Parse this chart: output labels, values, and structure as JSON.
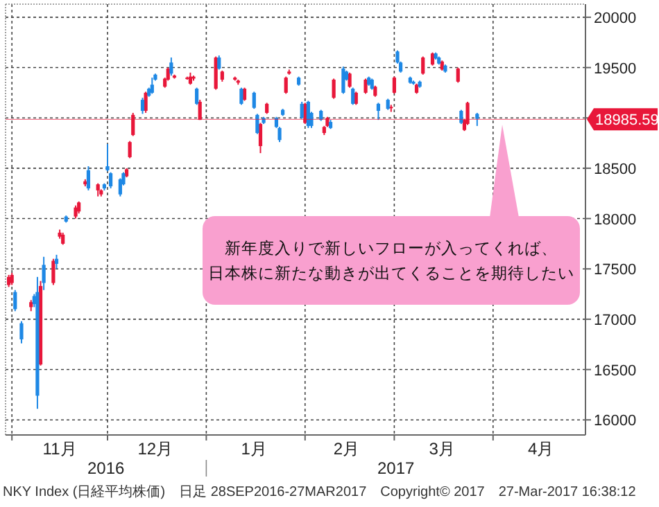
{
  "chart_data": {
    "type": "candlestick",
    "xlim": [
      "2016-10-30",
      "2017-04-30"
    ],
    "xticks": [
      {
        "value": "2016-11-01",
        "label": null
      },
      {
        "value": "2016-11-16",
        "label": "11月"
      },
      {
        "value": "2016-12-01",
        "label": null
      },
      {
        "value": "2016-12-16",
        "label": "12月"
      },
      {
        "value": "2017-01-01",
        "label": null
      },
      {
        "value": "2017-01-16",
        "label": "1月"
      },
      {
        "value": "2017-02-01",
        "label": null
      },
      {
        "value": "2017-02-14",
        "label": "2月"
      },
      {
        "value": "2017-03-01",
        "label": null
      },
      {
        "value": "2017-03-16",
        "label": "3月"
      },
      {
        "value": "2017-04-01",
        "label": null
      },
      {
        "value": "2017-04-16",
        "label": "4月"
      }
    ],
    "ylim": [
      15850,
      20130
    ],
    "yticks": [
      16000,
      16500,
      17000,
      17500,
      18000,
      18500,
      {
        "value": 19000,
        "label": null
      },
      19500,
      20000
    ],
    "grid": true,
    "series": [
      {
        "color": "#e8173a",
        "x": [
          "2016-10-31",
          "2016-11-01",
          "2016-11-07",
          "2016-11-10",
          "2016-11-14",
          "2016-11-16",
          "2016-11-17",
          "2016-11-21",
          "2016-11-22",
          "2016-11-24",
          "2016-11-28",
          "2016-11-29",
          "2016-12-07",
          "2016-12-08",
          "2016-12-09",
          "2016-12-13",
          "2016-12-19",
          "2016-12-20",
          "2016-12-22",
          "2016-12-26",
          "2016-12-27",
          "2016-12-28",
          "2016-12-30",
          "2017-01-04",
          "2017-01-06",
          "2017-01-10",
          "2017-01-11",
          "2017-01-13",
          "2017-01-18",
          "2017-01-20",
          "2017-01-26",
          "2017-01-27",
          "2017-02-01",
          "2017-02-07",
          "2017-02-08",
          "2017-02-10",
          "2017-02-15",
          "2017-02-17",
          "2017-02-20",
          "2017-02-23",
          "2017-02-28",
          "2017-03-01",
          "2017-03-08",
          "2017-03-10",
          "2017-03-13",
          "2017-03-16",
          "2017-03-21",
          "2017-03-23",
          "2017-03-24"
        ],
        "ohlc": [
          [
            17340,
            17440,
            17320,
            17420
          ],
          [
            17360,
            17460,
            17340,
            17440
          ],
          [
            17120,
            17190,
            17080,
            17170
          ],
          [
            16550,
            17380,
            16540,
            17330
          ],
          [
            17360,
            17600,
            17340,
            17580
          ],
          [
            17820,
            17890,
            17800,
            17860
          ],
          [
            17750,
            17860,
            17740,
            17840
          ],
          [
            18020,
            18130,
            18000,
            18110
          ],
          [
            18070,
            18170,
            18050,
            18160
          ],
          [
            18340,
            18390,
            18320,
            18370
          ],
          [
            18280,
            18350,
            18220,
            18340
          ],
          [
            18240,
            18290,
            18220,
            18280
          ],
          [
            18420,
            18500,
            18410,
            18490
          ],
          [
            18610,
            18770,
            18600,
            18760
          ],
          [
            18830,
            19050,
            18820,
            19030
          ],
          [
            19070,
            19260,
            19050,
            19250
          ],
          [
            19310,
            19400,
            19300,
            19390
          ],
          [
            19380,
            19500,
            19370,
            19490
          ],
          [
            19400,
            19430,
            19390,
            19420
          ],
          [
            19390,
            19410,
            19380,
            19400
          ],
          [
            19340,
            19450,
            19330,
            19410
          ],
          [
            19390,
            19420,
            19370,
            19410
          ],
          [
            18980,
            19180,
            18980,
            19160
          ],
          [
            19290,
            19610,
            19280,
            19600
          ],
          [
            19380,
            19470,
            19360,
            19460
          ],
          [
            19380,
            19410,
            19370,
            19400
          ],
          [
            19350,
            19380,
            19330,
            19370
          ],
          [
            19180,
            19300,
            19170,
            19290
          ],
          [
            18720,
            18950,
            18650,
            18940
          ],
          [
            19050,
            19150,
            19040,
            19140
          ],
          [
            19250,
            19410,
            19240,
            19400
          ],
          [
            19440,
            19480,
            19430,
            19460
          ],
          [
            18950,
            19150,
            18940,
            19140
          ],
          [
            18850,
            18920,
            18830,
            18910
          ],
          [
            18920,
            19010,
            18910,
            19000
          ],
          [
            19200,
            19390,
            19190,
            19380
          ],
          [
            19310,
            19450,
            19300,
            19440
          ],
          [
            19140,
            19260,
            19130,
            19250
          ],
          [
            19250,
            19390,
            19240,
            19380
          ],
          [
            19220,
            19320,
            19210,
            19310
          ],
          [
            19100,
            19130,
            19060,
            19110
          ],
          [
            19250,
            19410,
            19240,
            19400
          ],
          [
            19250,
            19340,
            19240,
            19330
          ],
          [
            19440,
            19610,
            19430,
            19600
          ],
          [
            19530,
            19650,
            19520,
            19640
          ],
          [
            19480,
            19570,
            19470,
            19560
          ],
          [
            19360,
            19500,
            19350,
            19490
          ],
          [
            18880,
            18990,
            18870,
            18980
          ],
          [
            18940,
            19160,
            18930,
            19150
          ]
        ]
      },
      {
        "color": "#1e88e5",
        "x": [
          "2016-11-02",
          "2016-11-04",
          "2016-11-08",
          "2016-11-09",
          "2016-11-11",
          "2016-11-15",
          "2016-11-18",
          "2016-11-25",
          "2016-11-30",
          "2016-12-01",
          "2016-12-02",
          "2016-12-05",
          "2016-12-06",
          "2016-12-12",
          "2016-12-14",
          "2016-12-15",
          "2016-12-16",
          "2016-12-21",
          "2016-12-29",
          "2017-01-05",
          "2017-01-12",
          "2017-01-16",
          "2017-01-17",
          "2017-01-19",
          "2017-01-23",
          "2017-01-24",
          "2017-01-25",
          "2017-01-30",
          "2017-01-31",
          "2017-02-02",
          "2017-02-03",
          "2017-02-06",
          "2017-02-09",
          "2017-02-13",
          "2017-02-14",
          "2017-02-16",
          "2017-02-21",
          "2017-02-22",
          "2017-02-24",
          "2017-02-27",
          "2017-03-02",
          "2017-03-03",
          "2017-03-06",
          "2017-03-07",
          "2017-03-09",
          "2017-03-14",
          "2017-03-15",
          "2017-03-17",
          "2017-03-22",
          "2017-03-27"
        ],
        "ohlc": [
          [
            17270,
            17290,
            17080,
            17100
          ],
          [
            16960,
            16980,
            16760,
            16800
          ],
          [
            17230,
            17250,
            17120,
            17150
          ],
          [
            17270,
            17420,
            16110,
            16240
          ],
          [
            17540,
            17620,
            17290,
            17360
          ],
          [
            17600,
            17640,
            17500,
            17550
          ],
          [
            18020,
            18030,
            17960,
            17970
          ],
          [
            18480,
            18520,
            18280,
            18300
          ],
          [
            18340,
            18350,
            18280,
            18300
          ],
          [
            18520,
            18740,
            18470,
            18480
          ],
          [
            18450,
            18460,
            18300,
            18320
          ],
          [
            18390,
            18400,
            18220,
            18240
          ],
          [
            18450,
            18460,
            18330,
            18340
          ],
          [
            19180,
            19200,
            19040,
            19070
          ],
          [
            19290,
            19300,
            19210,
            19220
          ],
          [
            19330,
            19400,
            19240,
            19250
          ],
          [
            19430,
            19440,
            19370,
            19380
          ],
          [
            19550,
            19600,
            19420,
            19440
          ],
          [
            19290,
            19300,
            19130,
            19140
          ],
          [
            19600,
            19620,
            19480,
            19490
          ],
          [
            19290,
            19300,
            19130,
            19140
          ],
          [
            19250,
            19260,
            19090,
            19100
          ],
          [
            19030,
            19040,
            18840,
            18850
          ],
          [
            19000,
            19010,
            18940,
            18950
          ],
          [
            19000,
            19010,
            18900,
            18910
          ],
          [
            18900,
            18910,
            18760,
            18780
          ],
          [
            19080,
            19090,
            19020,
            19030
          ],
          [
            19400,
            19410,
            19320,
            19330
          ],
          [
            19140,
            19160,
            18990,
            19000
          ],
          [
            19160,
            19170,
            18900,
            18920
          ],
          [
            19050,
            19060,
            18900,
            18920
          ],
          [
            19070,
            19080,
            18970,
            18980
          ],
          [
            18960,
            18980,
            18890,
            18900
          ],
          [
            19490,
            19510,
            19240,
            19250
          ],
          [
            19460,
            19470,
            19370,
            19380
          ],
          [
            19290,
            19300,
            19130,
            19140
          ],
          [
            19400,
            19410,
            19320,
            19330
          ],
          [
            19380,
            19390,
            19280,
            19290
          ],
          [
            19140,
            19150,
            18980,
            19070
          ],
          [
            19180,
            19190,
            19080,
            19090
          ],
          [
            19660,
            19670,
            19540,
            19550
          ],
          [
            19550,
            19560,
            19450,
            19460
          ],
          [
            19400,
            19410,
            19340,
            19350
          ],
          [
            19360,
            19370,
            19330,
            19340
          ],
          [
            19360,
            19370,
            19300,
            19310
          ],
          [
            19640,
            19650,
            19580,
            19590
          ],
          [
            19600,
            19610,
            19530,
            19540
          ],
          [
            19520,
            19530,
            19450,
            19460
          ],
          [
            19070,
            19080,
            18940,
            18950
          ],
          [
            19040,
            19050,
            18920,
            18990
          ]
        ]
      }
    ],
    "ref_lines": [
      {
        "axis": "y",
        "value": 18985.59,
        "label": "18985.59",
        "color": "#e8173a"
      }
    ],
    "annotations": [
      "新年度入りで新しいフローが入ってくれば、",
      "日本株に新たな動きが出てくることを期待したい",
      "2016",
      "2017",
      "NKY Index (日経平均株価)",
      "日足 28SEP2016-27MAR2017",
      "Copyright© 2017",
      "27-Mar-2017 16:38:12"
    ]
  }
}
